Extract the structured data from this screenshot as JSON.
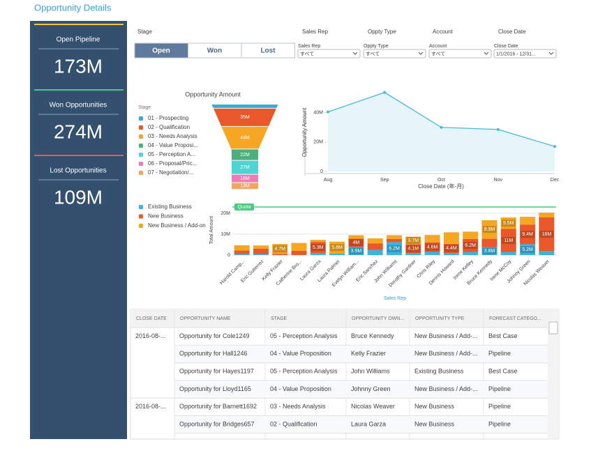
{
  "title": "Opportunity Details",
  "kpis": [
    {
      "label": "Open Pipeline",
      "value": "173M",
      "color": "#f5c342"
    },
    {
      "label": "Won Opportunities",
      "value": "274M",
      "color": "#4bca81"
    },
    {
      "label": "Lost Opportunities",
      "value": "109M",
      "color": "#e9595b"
    }
  ],
  "filters": {
    "stage": {
      "label": "Stage",
      "options": [
        "Open",
        "Won",
        "Lost"
      ],
      "selected": 0
    },
    "headers": [
      "Sales Rep",
      "Oppty Type",
      "Account",
      "Close Date"
    ],
    "dropdowns": [
      {
        "label": "Sales Rep",
        "value": "すべて"
      },
      {
        "label": "Oppty Type",
        "value": "すべて"
      },
      {
        "label": "Account",
        "value": "すべて"
      },
      {
        "label": "Close Date",
        "value": "1/1/2016 - 12/31..."
      }
    ]
  },
  "chart_data": [
    {
      "type": "funnel",
      "title": "Opportunity Amount",
      "legend_title": "Stage",
      "categories": [
        "01 - Prospecting",
        "02 - Qualification",
        "03 - Needs Analysis",
        "04 - Value Proposi...",
        "05 - Perception A...",
        "06 - Proposal/Pric...",
        "07 - Negotiation/..."
      ],
      "values": [
        8,
        35,
        44,
        22,
        27,
        16,
        13
      ],
      "value_labels": [
        null,
        "35M",
        "44M",
        "22M",
        "27M",
        "16M",
        "13M"
      ],
      "colors": [
        "#3ba9d9",
        "#e8582a",
        "#f5a623",
        "#4caf7d",
        "#4fd3d3",
        "#e97fb6",
        "#f7a35c"
      ]
    },
    {
      "type": "line",
      "categories": [
        "Aug",
        "Sep",
        "Oct",
        "Nov",
        "Dec"
      ],
      "values": [
        40.5,
        53.8,
        30,
        28.6,
        17
      ],
      "color": "#4ab6dc",
      "fill": "#e6f5fa",
      "xlabel": "Close Date (年-月)",
      "ylabel": "Opportunity Amount",
      "ylim": [
        0,
        56
      ],
      "yticks": [
        0,
        {
          "value": 20,
          "label": "20M"
        },
        {
          "value": 40,
          "label": "40M"
        }
      ]
    },
    {
      "type": "stacked_bar",
      "categories": [
        "Harold Camp...",
        "Eric Gutierrez",
        "Kelly Frazier",
        "Catherine Bro...",
        "Laura Garza",
        "Laura Palmer",
        "Evelyn William...",
        "Eric Sanchez",
        "John Williams",
        "Dorothy Gardner",
        "Chris Riley",
        "Dennis Howard",
        "Irene Kelley",
        "Bruce Kennedy",
        "Irene McCoy",
        "Johnny Green",
        "Nicolas Weaver"
      ],
      "series": [
        {
          "name": "Existing Business",
          "color": "#3bb4e0",
          "values": [
            0.5,
            0.5,
            0,
            0,
            1,
            0.8,
            3.9,
            2.5,
            6.2,
            1,
            1.5,
            1,
            1.5,
            3.8,
            1.5,
            5.2,
            2
          ],
          "value_labels": [
            null,
            null,
            null,
            null,
            null,
            null,
            "3.9M",
            null,
            "6.2M",
            null,
            null,
            null,
            null,
            "3.8M",
            null,
            "5.2M",
            null
          ]
        },
        {
          "name": "New Business",
          "color": "#e8582a",
          "values": [
            1.7,
            2.5,
            0.6,
            2,
            5.3,
            0,
            4,
            3,
            1.5,
            4.1,
            4.6,
            4.4,
            6.2,
            4,
            11,
            9.4,
            16
          ],
          "value_labels": [
            null,
            null,
            null,
            null,
            "5.3M",
            null,
            "4M",
            null,
            null,
            "4.1M",
            "4.6M",
            "4.4M",
            "6.2M",
            null,
            "11M",
            "9.4M",
            "16M"
          ]
        },
        {
          "name": "New Business / Add-on",
          "color": "#f5a623",
          "values": [
            2.5,
            1.6,
            4.7,
            3.8,
            1,
            5.6,
            1.6,
            2.5,
            1.8,
            3.7,
            3.5,
            5.5,
            3.5,
            8.9,
            5.5,
            3.7,
            2.3
          ],
          "value_labels": [
            null,
            null,
            "4.7M",
            null,
            null,
            "5.6M",
            null,
            null,
            null,
            "3.7M",
            null,
            null,
            null,
            "8.9M",
            "5.5M",
            null,
            null
          ]
        }
      ],
      "xlabel": "Sales Rep",
      "ylabel": "Total Amount",
      "ylim": [
        0,
        24
      ],
      "yticks": [
        0,
        {
          "value": 10,
          "label": "10M"
        },
        {
          "value": 20,
          "label": "20M"
        }
      ],
      "grid": true,
      "quota": {
        "label": "Quota",
        "value": 23,
        "color": "#4bca81"
      }
    }
  ],
  "table": {
    "columns": [
      "CLOSE DATE",
      "OPPORTUNITY NAME",
      "STAGE",
      "OPPORTUNITY OWN...",
      "OPPORTUNITY TYPE",
      "FORECAST CATEGO..."
    ],
    "rows": [
      [
        "2016-08-...",
        "Opportunity for Cole1249",
        "05 - Perception Analysis",
        "Bruce Kennedy",
        "New Business / Add-...",
        "Best Case"
      ],
      [
        null,
        "Opportunity for Hall1246",
        "04 - Value Proposition",
        "Kelly Frazier",
        "New Business / Add-...",
        "Pipeline"
      ],
      [
        null,
        "Opportunity for Hayes1197",
        "05 - Perception Analysis",
        "John Williams",
        "Existing Business",
        "Best Case"
      ],
      [
        null,
        "Opportunity for Lloyd1165",
        "04 - Value Proposition",
        "Johnny Green",
        "New Business / Add-...",
        "Pipeline"
      ],
      [
        "2016-08-...",
        "Opportunity for Barnett1692",
        "03 - Needs Analysis",
        "Nicolas Weaver",
        "New Business",
        "Pipeline"
      ],
      [
        null,
        "Opportunity for Bridges657",
        "02 - Qualification",
        "Laura Garza",
        "New Business",
        "Pipeline"
      ]
    ]
  }
}
